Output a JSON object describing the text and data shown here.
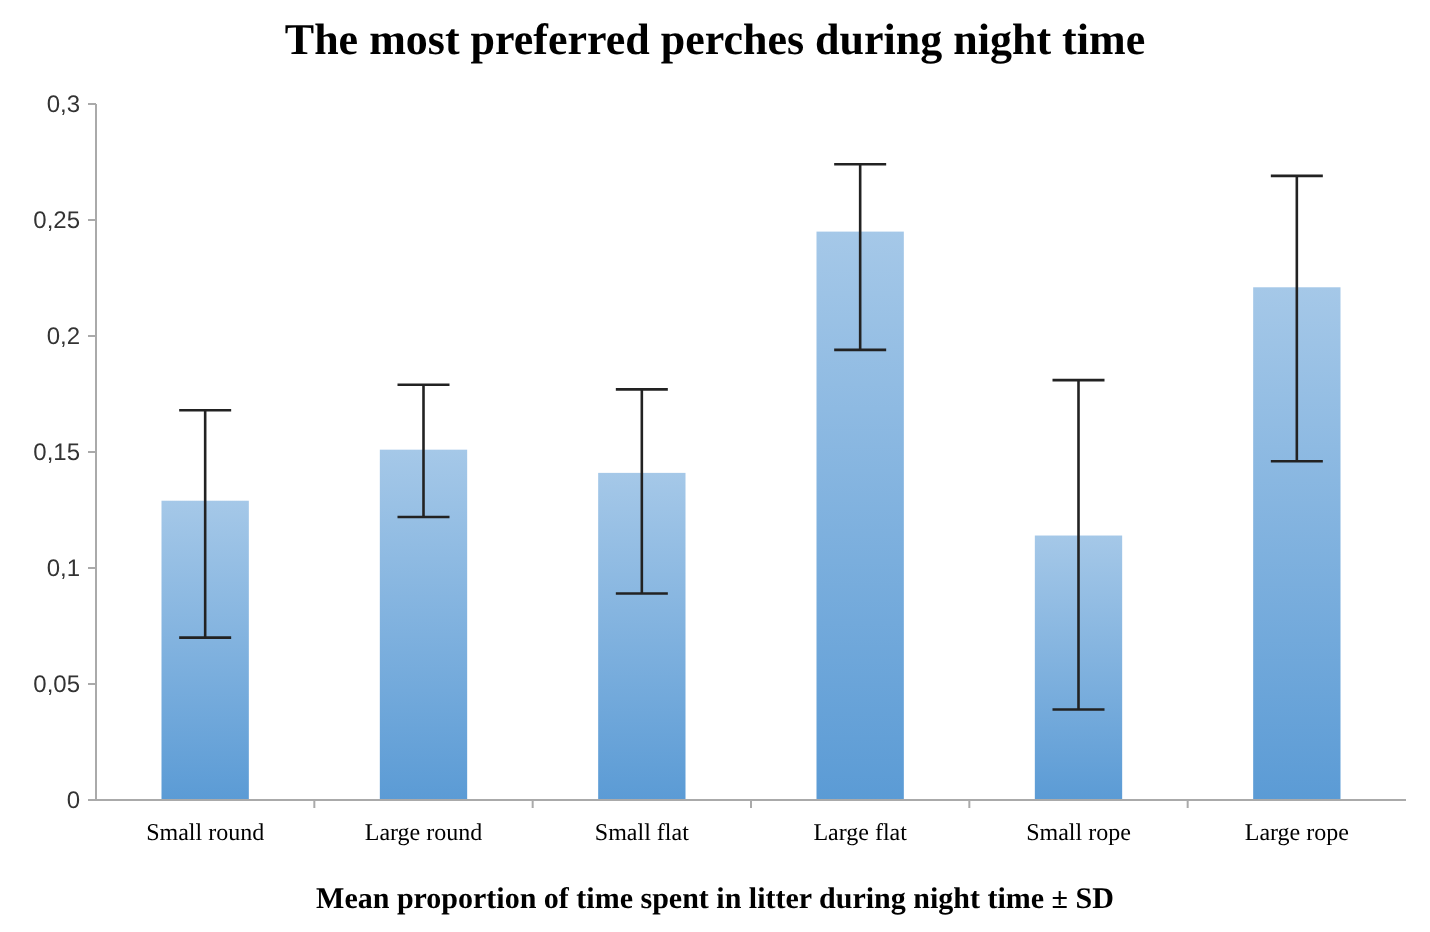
{
  "chart_data": {
    "type": "bar",
    "title": "The most preferred perches during night time",
    "xlabel": "Mean proportion of time spent in litter during night time ± SD",
    "categories": [
      "Small round",
      "Large round",
      "Small flat",
      "Large flat",
      "Small rope",
      "Large rope"
    ],
    "values": [
      0.129,
      0.151,
      0.141,
      0.245,
      0.114,
      0.221
    ],
    "errors": [
      [
        0.07,
        0.168
      ],
      [
        0.122,
        0.179
      ],
      [
        0.089,
        0.177
      ],
      [
        0.194,
        0.274
      ],
      [
        0.039,
        0.181
      ],
      [
        0.146,
        0.269
      ]
    ],
    "color": "#5b9bd5",
    "ylim": [
      0,
      0.3
    ],
    "yticks": [
      {
        "value": 0,
        "label": "0"
      },
      {
        "value": 0.05,
        "label": "0,05"
      },
      {
        "value": 0.1,
        "label": "0,1"
      },
      {
        "value": 0.15,
        "label": "0,15"
      },
      {
        "value": 0.2,
        "label": "0,2"
      },
      {
        "value": 0.25,
        "label": "0,25"
      },
      {
        "value": 0.3,
        "label": "0,3"
      }
    ],
    "grid": false
  }
}
